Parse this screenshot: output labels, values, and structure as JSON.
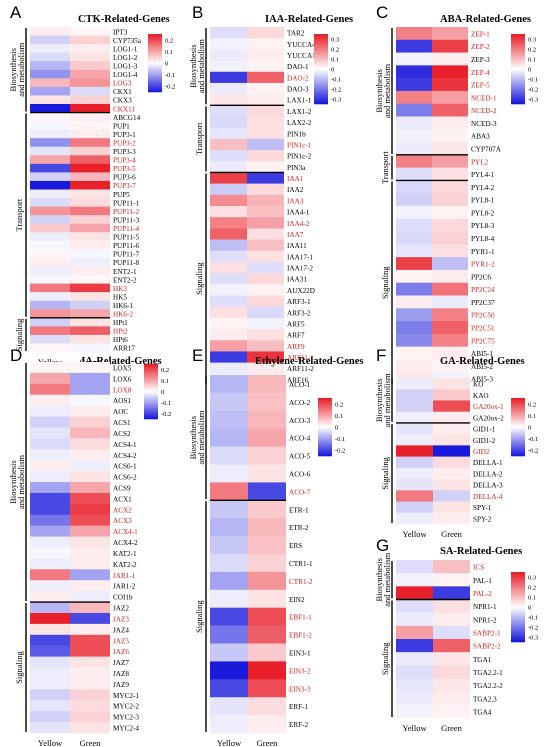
{
  "colorbar_ticks": [
    "0.2",
    "0.1",
    "0",
    "-0.1",
    "-0.2"
  ],
  "colorbar_ticks_3": [
    "0.3",
    "0.2",
    "0.1",
    "0",
    "-0.1",
    "-0.2",
    "-0.3"
  ],
  "colors": {
    "red": "#e8202a",
    "white": "#ffffff",
    "blue": "#1a1adc",
    "highlight": "#d42020"
  },
  "chart_data": [
    {
      "type": "heatmap",
      "letter": "A",
      "title": "CTK-Related-Genes",
      "columns": [
        "Yellow",
        "Green"
      ],
      "group_labels": [
        "Biosynthesis and metabolism",
        "Transport",
        "Signaling"
      ],
      "groups": [
        0,
        10,
        34
      ],
      "colorbar": [
        "0.2",
        "0.1",
        "0",
        "-0.1",
        "-0.2"
      ],
      "vrange": [
        -0.25,
        0.25
      ],
      "genes": [
        "IPT3",
        "CYP735a",
        "LOG1-1",
        "LOG1-2",
        "LOG1-3",
        "LOG1-4",
        "LOG3",
        "CKX1",
        "CKX3",
        "CKX11",
        "ABCG14",
        "PUP1",
        "PUP3-1",
        "PUP3-2",
        "PUP3-3",
        "PUP3-4",
        "PUP3-5",
        "PUP3-6",
        "PUP3-7",
        "PUP5",
        "PUP11-1",
        "PUP11-2",
        "PUP11-3",
        "PUP11-4",
        "PUP11-5",
        "PUP11-6",
        "PUP11-7",
        "PUP11-8",
        "ENT2-1",
        "ENT2-2",
        "HK3",
        "HK5",
        "HK6-1",
        "HK6-2",
        "HPt1",
        "HPt2",
        "HPt6",
        "ARR17"
      ],
      "highlight": [
        "LOG3",
        "CKX11",
        "PUP3-2",
        "PUP3-4",
        "PUP3-5",
        "PUP3-7",
        "PUP11-2",
        "PUP11-4",
        "HK3",
        "HK6-2",
        "HPt2"
      ],
      "values": [
        [
          0.02,
          0.01
        ],
        [
          -0.05,
          0.05
        ],
        [
          -0.02,
          0.02
        ],
        [
          -0.04,
          0.03
        ],
        [
          -0.08,
          0.06
        ],
        [
          -0.12,
          0.1
        ],
        [
          0.08,
          0.12
        ],
        [
          -0.1,
          -0.04
        ],
        [
          0.03,
          0.05
        ],
        [
          -0.3,
          0.25
        ],
        [
          0.01,
          0.02
        ],
        [
          -0.01,
          0.01
        ],
        [
          -0.02,
          0.02
        ],
        [
          -0.12,
          0.15
        ],
        [
          -0.03,
          0.05
        ],
        [
          0.1,
          0.18
        ],
        [
          -0.2,
          0.25
        ],
        [
          -0.05,
          0.08
        ],
        [
          -0.25,
          0.25
        ],
        [
          -0.02,
          0.03
        ],
        [
          -0.04,
          0.04
        ],
        [
          0.12,
          0.15
        ],
        [
          -0.05,
          0.05
        ],
        [
          0.06,
          0.1
        ],
        [
          -0.02,
          0.03
        ],
        [
          -0.01,
          0.02
        ],
        [
          0.01,
          -0.01
        ],
        [
          0.02,
          -0.02
        ],
        [
          -0.02,
          0.02
        ],
        [
          -0.01,
          0.01
        ],
        [
          0.15,
          0.22
        ],
        [
          -0.02,
          0.03
        ],
        [
          -0.08,
          -0.05
        ],
        [
          0.12,
          0.1
        ],
        [
          -0.05,
          0.03
        ],
        [
          0.15,
          0.18
        ],
        [
          -0.04,
          0.03
        ],
        [
          0.01,
          -0.01
        ]
      ]
    },
    {
      "type": "heatmap",
      "letter": "B",
      "title": "IAA-Related-Genes",
      "columns": [
        "Yellow",
        "Green"
      ],
      "group_labels": [
        "Biosynthesis and metabolism",
        "Transport",
        "Signaling"
      ],
      "groups": [
        0,
        7,
        13
      ],
      "colorbar": [
        "0.3",
        "0.2",
        "0.1",
        "0",
        "-0.1",
        "-0.2",
        "-0.3"
      ],
      "vrange": [
        -0.35,
        0.35
      ],
      "genes": [
        "TAR2",
        "YUCCA4",
        "YUCCA10",
        "DAO-1",
        "DAO-2",
        "DAO-3",
        "LAX1-1",
        "LAX1-2",
        "LAX2-2",
        "PIN1b",
        "PIN1c-1",
        "PIN1c-2",
        "PIN3a",
        "IAA1",
        "IAA2",
        "IAA3",
        "IAA4-1",
        "IAA4-2",
        "IAA7",
        "IAA11",
        "IAA17-1",
        "IAA17-2",
        "IAA31",
        "AUX22D",
        "ARF3-1",
        "ARF3-2",
        "ARF5",
        "ARF7",
        "ARF9",
        "ARF11-1",
        "ARF11-2",
        "ARF16"
      ],
      "highlight": [
        "DAO-2",
        "PIN1c-1",
        "IAA1",
        "IAA3",
        "IAA4-2",
        "IAA7",
        "ARF9",
        "ARF11-1"
      ],
      "values": [
        [
          -0.05,
          0.06
        ],
        [
          -0.02,
          0.02
        ],
        [
          -0.03,
          0.03
        ],
        [
          -0.02,
          0.02
        ],
        [
          -0.3,
          0.25
        ],
        [
          -0.03,
          0.02
        ],
        [
          0.04,
          0.03
        ],
        [
          -0.05,
          0.06
        ],
        [
          -0.06,
          0.05
        ],
        [
          -0.04,
          0.05
        ],
        [
          0.1,
          -0.1
        ],
        [
          -0.05,
          0.06
        ],
        [
          -0.03,
          0.02
        ],
        [
          0.3,
          -0.3
        ],
        [
          -0.08,
          0.06
        ],
        [
          0.18,
          0.12
        ],
        [
          0.05,
          0.1
        ],
        [
          0.2,
          0.15
        ],
        [
          0.25,
          0.05
        ],
        [
          -0.1,
          0.1
        ],
        [
          -0.05,
          0.05
        ],
        [
          0.05,
          -0.05
        ],
        [
          -0.05,
          0.06
        ],
        [
          -0.02,
          0.02
        ],
        [
          -0.05,
          0.06
        ],
        [
          0.05,
          -0.06
        ],
        [
          0.02,
          -0.02
        ],
        [
          0.03,
          0.05
        ],
        [
          0.15,
          0.1
        ],
        [
          -0.3,
          0.32
        ],
        [
          -0.03,
          0.03
        ],
        [
          -0.02,
          0.02
        ]
      ]
    },
    {
      "type": "heatmap",
      "letter": "C",
      "title": "ABA-Related-Genes",
      "columns": [
        "Yellow",
        "Green"
      ],
      "group_labels": [
        "Biosynthesis and metabolism",
        "Transport",
        "Signaling"
      ],
      "groups": [
        0,
        10,
        12
      ],
      "colorbar": [
        "0.3",
        "0.2",
        "0.1",
        "0",
        "-0.1",
        "-0.2",
        "-0.3"
      ],
      "vrange": [
        -0.35,
        0.35
      ],
      "genes": [
        "ZEP-1",
        "ZEP-2",
        "ZEP-3",
        "ZEP-4",
        "ZEP-5",
        "NCED-1",
        "NCED-2",
        "NCED-3",
        "ABA3",
        "CYP707A",
        "PYL2",
        "PYL4-1",
        "PYL4-2",
        "PYL8-1",
        "PYL8-2",
        "PYL8-3",
        "PYL8-4",
        "PYR1-1",
        "PYR1-2",
        "PP2C6",
        "PP2C24",
        "PP2C37",
        "PP2C50",
        "PP2C51",
        "PP2C75",
        "ABI5-1",
        "ABI5-2",
        "ABI5-3"
      ],
      "highlight": [
        "ZEP-1",
        "ZEP-2",
        "ZEP-4",
        "ZEP-5",
        "NCED-1",
        "NCED-2",
        "PYL2",
        "PYR1-2",
        "PP2C24",
        "PP2C50",
        "PP2C51",
        "PP2C75"
      ],
      "values": [
        [
          0.2,
          0.15
        ],
        [
          -0.3,
          0.3
        ],
        [
          -0.02,
          0.03
        ],
        [
          -0.32,
          0.35
        ],
        [
          -0.3,
          0.32
        ],
        [
          0.2,
          0.15
        ],
        [
          -0.2,
          0.25
        ],
        [
          -0.03,
          0.03
        ],
        [
          -0.02,
          0.02
        ],
        [
          -0.03,
          0.04
        ],
        [
          0.2,
          0.15
        ],
        [
          -0.05,
          0.05
        ],
        [
          -0.06,
          0.06
        ],
        [
          -0.07,
          0.07
        ],
        [
          -0.02,
          0.02
        ],
        [
          -0.05,
          0.06
        ],
        [
          -0.06,
          0.07
        ],
        [
          -0.04,
          0.05
        ],
        [
          0.3,
          -0.1
        ],
        [
          0.02,
          0.03
        ],
        [
          -0.2,
          0.22
        ],
        [
          0.03,
          -0.03
        ],
        [
          -0.15,
          0.2
        ],
        [
          -0.2,
          0.25
        ],
        [
          -0.18,
          0.2
        ],
        [
          0.02,
          0.03
        ],
        [
          0.03,
          0.02
        ],
        [
          0.04,
          -0.02
        ]
      ]
    },
    {
      "type": "heatmap",
      "letter": "D",
      "title": "JA-Related-Genes",
      "columns": [
        "Yellow",
        "Green"
      ],
      "group_labels": [
        "Biosynthesis and metabolism",
        "Signaling"
      ],
      "groups": [
        0,
        22
      ],
      "colorbar": [
        "0.2",
        "0.1",
        "0",
        "-0.1",
        "-0.2"
      ],
      "vrange": [
        -0.25,
        0.25
      ],
      "genes": [
        "LOX5",
        "LOX6",
        "LOX8",
        "AOS1",
        "AOC",
        "ACS1",
        "ACS2",
        "ACS4-1",
        "ACS4-2",
        "ACS6-1",
        "ACS6-2",
        "ACS9",
        "ACX1",
        "ACX2",
        "ACX3",
        "ACX4-1",
        "ACX4-2",
        "KAT2-1",
        "KAT2-2",
        "JAR1-1",
        "JAR1-2",
        "COI1b",
        "JAZ2",
        "JAZ3",
        "JAZ4",
        "JAZ5",
        "JAZ6",
        "JAZ7",
        "JAZ8",
        "JAZ9",
        "MYC2-1",
        "MYC2-2",
        "MYC2-3",
        "MYC2-4"
      ],
      "highlight": [
        "LOX8",
        "ACX2",
        "ACX3",
        "ACX4-1",
        "JAR1-1",
        "JAZ3",
        "JAZ5",
        "JAZ6"
      ],
      "values": [
        [
          0.01,
          0.01
        ],
        [
          0.1,
          -0.1
        ],
        [
          0.15,
          -0.1
        ],
        [
          0.02,
          -0.01
        ],
        [
          -0.02,
          0.02
        ],
        [
          -0.05,
          0.05
        ],
        [
          -0.03,
          0.08
        ],
        [
          -0.04,
          0.04
        ],
        [
          -0.02,
          0.02
        ],
        [
          0.02,
          -0.02
        ],
        [
          -0.02,
          0.03
        ],
        [
          -0.1,
          0.1
        ],
        [
          -0.2,
          0.2
        ],
        [
          -0.2,
          0.22
        ],
        [
          -0.15,
          0.2
        ],
        [
          -0.1,
          0.1
        ],
        [
          -0.02,
          0.03
        ],
        [
          -0.01,
          0.02
        ],
        [
          -0.02,
          0.02
        ],
        [
          0.15,
          -0.1
        ],
        [
          -0.02,
          0.02
        ],
        [
          0.02,
          -0.02
        ],
        [
          -0.08,
          0.08
        ],
        [
          0.25,
          -0.2
        ],
        [
          0.03,
          0.02
        ],
        [
          -0.2,
          0.2
        ],
        [
          -0.18,
          0.2
        ],
        [
          -0.03,
          0.03
        ],
        [
          -0.02,
          0.02
        ],
        [
          -0.02,
          0.02
        ],
        [
          -0.05,
          0.05
        ],
        [
          -0.03,
          0.04
        ],
        [
          -0.05,
          0.05
        ],
        [
          -0.03,
          0.03
        ]
      ]
    },
    {
      "type": "heatmap",
      "letter": "E",
      "title": "Ethylene-Related-Genes",
      "columns": [
        "Yellow",
        "Green"
      ],
      "group_labels": [
        "Biosynthesis and metabolism",
        "Signaling"
      ],
      "groups": [
        0,
        7
      ],
      "colorbar": [
        "0.2",
        "0.1",
        "0",
        "-0.1",
        "-0.2"
      ],
      "vrange": [
        -0.25,
        0.25
      ],
      "genes": [
        "ACO-1",
        "ACO-2",
        "ACO-3",
        "ACO-4",
        "ACO-5",
        "ACO-6",
        "ACO-7",
        "ETR-1",
        "ETR-2",
        "ERS",
        "CTR1-1",
        "CTR1-2",
        "EIN2",
        "EBF1-1",
        "EBF1-2",
        "EIN3-1",
        "EIN3-2",
        "EIN3-3",
        "ERF-1",
        "ERF-2"
      ],
      "highlight": [
        "ACO-7",
        "CTR1-2",
        "EBF1-1",
        "EBF1-2",
        "EIN3-2",
        "EIN3-3"
      ],
      "values": [
        [
          -0.08,
          0.08
        ],
        [
          -0.06,
          0.07
        ],
        [
          -0.07,
          0.08
        ],
        [
          -0.08,
          0.1
        ],
        [
          -0.04,
          0.05
        ],
        [
          -0.02,
          0.03
        ],
        [
          0.15,
          -0.2
        ],
        [
          -0.06,
          0.06
        ],
        [
          -0.08,
          0.08
        ],
        [
          -0.06,
          0.07
        ],
        [
          -0.04,
          0.05
        ],
        [
          -0.1,
          0.12
        ],
        [
          -0.02,
          0.03
        ],
        [
          -0.2,
          0.2
        ],
        [
          -0.15,
          0.18
        ],
        [
          -0.06,
          0.06
        ],
        [
          -0.25,
          0.25
        ],
        [
          -0.2,
          0.2
        ],
        [
          -0.03,
          0.04
        ],
        [
          -0.02,
          0.02
        ]
      ]
    },
    {
      "type": "heatmap",
      "letter": "F",
      "title": "GA-Related-Genes",
      "columns": [
        "Yellow",
        "Green"
      ],
      "group_labels": [
        "Biosynthesis and metabolism",
        "Signaling"
      ],
      "groups": [
        0,
        4
      ],
      "colorbar": [
        "0.2",
        "0.1",
        "0",
        "-0.1",
        "-0.2"
      ],
      "vrange": [
        -0.25,
        0.25
      ],
      "genes": [
        "KO",
        "KAO",
        "GA20ox-1",
        "GA20ox-2",
        "GID1-1",
        "GID1-2",
        "GID2",
        "DELLA-1",
        "DELLA-2",
        "DELLA-3",
        "DELLA-4",
        "SPY-1",
        "SPY-2"
      ],
      "highlight": [
        "GA20ox-1",
        "GID2",
        "DELLA-4"
      ],
      "values": [
        [
          -0.02,
          0.03
        ],
        [
          -0.05,
          0.06
        ],
        [
          -0.05,
          0.2
        ],
        [
          -0.02,
          0.02
        ],
        [
          -0.03,
          0.02
        ],
        [
          -0.02,
          0.03
        ],
        [
          0.25,
          -0.25
        ],
        [
          -0.05,
          0.04
        ],
        [
          -0.02,
          0.02
        ],
        [
          -0.03,
          0.03
        ],
        [
          0.15,
          -0.05
        ],
        [
          -0.05,
          0.03
        ],
        [
          -0.02,
          0.02
        ]
      ]
    },
    {
      "type": "heatmap",
      "letter": "G",
      "title": "SA-Related-Genes",
      "columns": [
        "Yellow",
        "Green"
      ],
      "group_labels": [
        "Biosynthesis and metabolism",
        "Signaling"
      ],
      "groups": [
        0,
        3
      ],
      "colorbar": [
        "0.3",
        "0.2",
        "0.1",
        "0",
        "-0.1",
        "-0.2",
        "-0.3"
      ],
      "vrange": [
        -0.35,
        0.35
      ],
      "genes": [
        "ICS",
        "PAL-1",
        "PAL-2",
        "NPR1-1",
        "NPR1-2",
        "SABP2-1",
        "SABP2-2",
        "TGA1",
        "TGA2.2-1",
        "TGA2.2-2",
        "TGA2.3",
        "TGA4"
      ],
      "highlight": [
        "ICS",
        "PAL-2",
        "SABP2-1",
        "SABP2-2"
      ],
      "values": [
        [
          -0.05,
          0.1
        ],
        [
          -0.02,
          0.02
        ],
        [
          0.35,
          -0.3
        ],
        [
          -0.05,
          0.05
        ],
        [
          -0.03,
          0.03
        ],
        [
          0.15,
          -0.05
        ],
        [
          -0.3,
          0.25
        ],
        [
          -0.03,
          0.04
        ],
        [
          -0.05,
          0.06
        ],
        [
          -0.04,
          0.04
        ],
        [
          -0.03,
          0.03
        ],
        [
          -0.02,
          0.02
        ]
      ]
    }
  ]
}
